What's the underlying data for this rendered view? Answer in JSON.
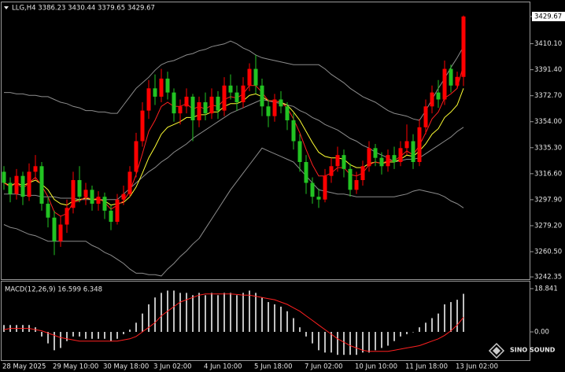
{
  "chart_data": [
    {
      "type": "candlestick",
      "title": "LLG,H4 3386.23 3430.44 3379.65 3429.67",
      "categories": [
        "28 May 2025",
        null,
        null,
        null,
        null,
        null,
        null,
        null,
        "29 May 10:00",
        null,
        null,
        null,
        null,
        null,
        null,
        null,
        "30 May 18:00",
        null,
        null,
        null,
        null,
        null,
        null,
        null,
        "3 Jun 02:00",
        null,
        null,
        null,
        null,
        null,
        null,
        null,
        "4 Jun 10:00",
        null,
        null,
        null,
        null,
        null,
        null,
        null,
        "5 Jun 18:00",
        null,
        null,
        null,
        null,
        null,
        null,
        null,
        "7 Jun 02:00",
        null,
        null,
        null,
        null,
        null,
        null,
        null,
        "10 Jun 10:00",
        null,
        null,
        null,
        null,
        null,
        null,
        null,
        "11 Jun 18:00",
        null,
        null,
        null,
        null,
        null,
        null,
        null,
        "13 Jun 02:00",
        null
      ],
      "open": [
        3318,
        3310,
        3302,
        3315,
        3300,
        3318,
        3322,
        3295,
        3285,
        3268,
        3280,
        3292,
        3312,
        3300,
        3305,
        3295,
        3300,
        3290,
        3282,
        3298,
        3302,
        3318,
        3340,
        3362,
        3378,
        3372,
        3385,
        3375,
        3360,
        3365,
        3372,
        3355,
        3368,
        3360,
        3372,
        3362,
        3380,
        3375,
        3368,
        3380,
        3392,
        3380,
        3365,
        3358,
        3370,
        3365,
        3355,
        3340,
        3325,
        3310,
        3300,
        3298,
        3315,
        3322,
        3330,
        3320,
        3305,
        3312,
        3322,
        3335,
        3328,
        3322,
        3330,
        3325,
        3335,
        3340,
        3325,
        3350,
        3365,
        3375,
        3370,
        3392,
        3380,
        3386.23
      ],
      "high": [
        3322,
        3314,
        3320,
        3318,
        3324,
        3330,
        3325,
        3300,
        3290,
        3286,
        3298,
        3318,
        3322,
        3310,
        3308,
        3304,
        3303,
        3294,
        3302,
        3308,
        3322,
        3346,
        3368,
        3384,
        3388,
        3392,
        3390,
        3378,
        3370,
        3378,
        3374,
        3372,
        3375,
        3378,
        3376,
        3386,
        3388,
        3380,
        3386,
        3396,
        3402,
        3385,
        3370,
        3374,
        3376,
        3368,
        3360,
        3345,
        3330,
        3314,
        3306,
        3320,
        3328,
        3336,
        3334,
        3324,
        3318,
        3326,
        3340,
        3338,
        3332,
        3334,
        3336,
        3340,
        3352,
        3345,
        3356,
        3370,
        3380,
        3384,
        3398,
        3395,
        3390,
        3430.44
      ],
      "low": [
        3305,
        3296,
        3298,
        3294,
        3297,
        3312,
        3290,
        3278,
        3258,
        3264,
        3274,
        3288,
        3296,
        3294,
        3290,
        3290,
        3284,
        3276,
        3280,
        3294,
        3300,
        3314,
        3336,
        3356,
        3366,
        3368,
        3370,
        3354,
        3352,
        3360,
        3340,
        3350,
        3355,
        3356,
        3356,
        3358,
        3370,
        3362,
        3364,
        3376,
        3374,
        3358,
        3350,
        3354,
        3360,
        3348,
        3334,
        3318,
        3302,
        3295,
        3292,
        3296,
        3310,
        3318,
        3314,
        3300,
        3302,
        3308,
        3318,
        3322,
        3316,
        3318,
        3320,
        3322,
        3330,
        3320,
        3322,
        3345,
        3360,
        3364,
        3366,
        3375,
        3378,
        3379.65
      ],
      "close": [
        3310,
        3302,
        3315,
        3300,
        3318,
        3322,
        3295,
        3285,
        3268,
        3280,
        3292,
        3312,
        3300,
        3305,
        3295,
        3300,
        3290,
        3282,
        3298,
        3302,
        3318,
        3340,
        3362,
        3378,
        3372,
        3385,
        3375,
        3360,
        3365,
        3372,
        3355,
        3368,
        3360,
        3372,
        3362,
        3380,
        3375,
        3368,
        3380,
        3392,
        3380,
        3365,
        3358,
        3370,
        3365,
        3355,
        3340,
        3325,
        3310,
        3300,
        3298,
        3315,
        3322,
        3330,
        3320,
        3305,
        3312,
        3322,
        3335,
        3328,
        3322,
        3330,
        3325,
        3335,
        3340,
        3325,
        3350,
        3365,
        3375,
        3370,
        3392,
        3380,
        3386.23,
        3429.67
      ],
      "up_color": "#ff0000",
      "down_color": "#22c322",
      "lines": [
        {
          "color": "#8c8c8c",
          "values": [
            3375,
            3375,
            3374,
            3374,
            3373,
            3373,
            3372,
            3372,
            3370,
            3368,
            3367,
            3365,
            3364,
            3362,
            3362,
            3361,
            3361,
            3360,
            3360,
            3366,
            3372,
            3378,
            3382,
            3386,
            3391,
            3395,
            3397,
            3398,
            3400,
            3402,
            3403,
            3405,
            3406,
            3408,
            3409,
            3410,
            3412,
            3410,
            3407,
            3405,
            3402,
            3400,
            3399,
            3398,
            3397,
            3396,
            3395,
            3395,
            3395,
            3395,
            3395,
            3392,
            3388,
            3385,
            3382,
            3378,
            3375,
            3372,
            3370,
            3368,
            3365,
            3362,
            3360,
            3359,
            3358,
            3356,
            3355,
            3362,
            3370,
            3378,
            3385,
            3393,
            3400,
            3408
          ]
        },
        {
          "color": "#8c8c8c",
          "values": [
            3302,
            3302,
            3302,
            3301,
            3301,
            3301,
            3300,
            3300,
            3300,
            3299,
            3299,
            3299,
            3298,
            3298,
            3298,
            3298,
            3298,
            3298,
            3298,
            3302,
            3306,
            3310,
            3314,
            3318,
            3321,
            3325,
            3328,
            3332,
            3335,
            3338,
            3342,
            3345,
            3348,
            3351,
            3354,
            3357,
            3360,
            3362,
            3364,
            3366,
            3368,
            3370,
            3369,
            3368,
            3367,
            3366,
            3365,
            3362,
            3360,
            3357,
            3355,
            3352,
            3350,
            3348,
            3345,
            3342,
            3340,
            3337,
            3335,
            3332,
            3330,
            3328,
            3325,
            3326,
            3327,
            3327,
            3328,
            3331,
            3334,
            3337,
            3340,
            3343,
            3347,
            3350
          ]
        },
        {
          "color": "#8c8c8c",
          "values": [
            3280,
            3278,
            3277,
            3275,
            3273,
            3272,
            3270,
            3268,
            3268,
            3268,
            3268,
            3268,
            3268,
            3268,
            3265,
            3263,
            3260,
            3258,
            3255,
            3252,
            3248,
            3245,
            3245,
            3244,
            3244,
            3243,
            3248,
            3252,
            3257,
            3261,
            3266,
            3270,
            3277,
            3284,
            3291,
            3298,
            3305,
            3311,
            3317,
            3323,
            3329,
            3335,
            3333,
            3331,
            3329,
            3327,
            3325,
            3320,
            3315,
            3310,
            3305,
            3304,
            3303,
            3302,
            3302,
            3301,
            3300,
            3300,
            3300,
            3300,
            3300,
            3300,
            3300,
            3301,
            3302,
            3304,
            3305,
            3304,
            3303,
            3302,
            3300,
            3297,
            3295,
            3292
          ]
        },
        {
          "color": "#ffff33",
          "values": [
            3310,
            3308,
            3310,
            3308,
            3310,
            3312,
            3309,
            3305,
            3298,
            3295,
            3294,
            3297,
            3298,
            3299,
            3298,
            3298,
            3297,
            3294,
            3295,
            3296,
            3300,
            3307,
            3317,
            3328,
            3336,
            3345,
            3350,
            3352,
            3354,
            3357,
            3357,
            3359,
            3359,
            3361,
            3361,
            3365,
            3367,
            3367,
            3369,
            3373,
            3374,
            3372,
            3369,
            3369,
            3368,
            3366,
            3361,
            3355,
            3347,
            3339,
            3332,
            3329,
            3328,
            3328,
            3327,
            3323,
            3321,
            3321,
            3324,
            3325,
            3324,
            3325,
            3325,
            3327,
            3330,
            3329,
            3333,
            3338,
            3345,
            3349,
            3357,
            3361,
            3366,
            3378
          ]
        },
        {
          "color": "#ff2020",
          "values": [
            3310,
            3307,
            3310,
            3306,
            3310,
            3314,
            3308,
            3300,
            3289,
            3286,
            3288,
            3296,
            3297,
            3300,
            3298,
            3299,
            3296,
            3291,
            3294,
            3297,
            3304,
            3316,
            3331,
            3347,
            3355,
            3365,
            3368,
            3365,
            3365,
            3367,
            3363,
            3365,
            3363,
            3366,
            3365,
            3370,
            3372,
            3371,
            3374,
            3380,
            3380,
            3375,
            3369,
            3369,
            3368,
            3364,
            3356,
            3346,
            3334,
            3323,
            3315,
            3315,
            3317,
            3321,
            3321,
            3316,
            3315,
            3317,
            3323,
            3325,
            3324,
            3326,
            3326,
            3329,
            3333,
            3330,
            3337,
            3346,
            3356,
            3361,
            3371,
            3374,
            3378,
            3395
          ]
        }
      ],
      "ylim": [
        3240.7,
        3439.85
      ],
      "yticks": [
        3429.67,
        {
          "value": 3410.1,
          "label": "3410.10"
        },
        {
          "value": 3391.4,
          "label": "3391.40"
        },
        {
          "value": 3372.7,
          "label": "3372.70"
        },
        {
          "value": 3354,
          "label": "3354.00"
        },
        {
          "value": 3335.3,
          "label": "3335.30"
        },
        {
          "value": 3316.6,
          "label": "3316.60"
        },
        {
          "value": 3297.9,
          "label": "3297.90"
        },
        {
          "value": 3279.2,
          "label": "3279.20"
        },
        {
          "value": 3260.5,
          "label": "3260.50"
        },
        3242.35
      ]
    },
    {
      "type": "macd",
      "title": "MACD(12,26,9) 16.599 6.348",
      "histogram": [
        3,
        3,
        3,
        3,
        3,
        2,
        -2,
        -5,
        -8,
        -7,
        -4,
        -2,
        -2,
        -3,
        -3,
        -3,
        -3,
        -4,
        -3,
        -1,
        1,
        4,
        8,
        12,
        15,
        17,
        18,
        18,
        17,
        17,
        16,
        17,
        16,
        17,
        16,
        17,
        17,
        16,
        17,
        18,
        17,
        15,
        13,
        12,
        11,
        9,
        6,
        2,
        -2,
        -5,
        -8,
        -9,
        -9,
        -10,
        -10,
        -10,
        -10,
        -9,
        -9,
        -8,
        -7,
        -6,
        -4,
        -2,
        -1,
        0,
        2,
        4,
        6,
        8,
        12,
        13,
        14,
        16.599
      ],
      "histogram_color": "#ffffff",
      "signal": [
        1,
        1.5,
        1.5,
        1.5,
        1.5,
        1,
        0.5,
        -0.5,
        -1.5,
        -2.5,
        -3,
        -3.5,
        -4,
        -4,
        -4,
        -4,
        -4,
        -4,
        -4,
        -3.5,
        -3,
        -2,
        0,
        2,
        4,
        7,
        9,
        11,
        13,
        14,
        15,
        16,
        16.5,
        16.5,
        16.5,
        16.5,
        16.5,
        16.3,
        16,
        16,
        15.5,
        15,
        14.5,
        14,
        13,
        12,
        10.5,
        9,
        7,
        5,
        3,
        1,
        -1,
        -3,
        -4.5,
        -6,
        -7,
        -8,
        -8.5,
        -8.5,
        -8.5,
        -8.5,
        -8,
        -7.5,
        -7,
        -6.5,
        -6,
        -5,
        -4,
        -3,
        -1.5,
        0.5,
        3,
        6.348
      ],
      "signal_color": "#ff2020",
      "ylim": [
        -12.33,
        21.93
      ],
      "yticks": [
        18.841,
        {
          "value": 0,
          "label": "0.00"
        }
      ]
    }
  ],
  "watermark": "SINO SOUND"
}
